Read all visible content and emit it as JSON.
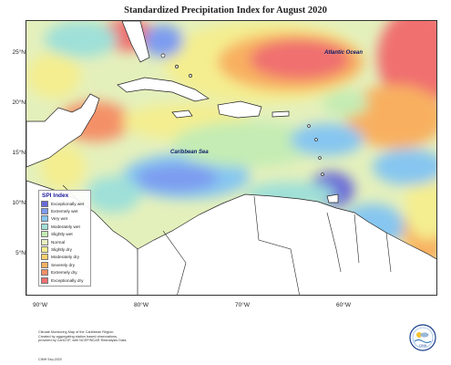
{
  "title": "Standardized Precipitation Index for August 2020",
  "lat_labels": [
    "25°N",
    "20°N",
    "15°N",
    "10°N",
    "5°N"
  ],
  "lon_labels": [
    "90°W",
    "80°W",
    "70°W",
    "60°W"
  ],
  "sea_labels": {
    "atlantic": "Atlantic Ocean",
    "caribbean": "Caribbean Sea"
  },
  "legend": {
    "title": "SPI Index",
    "items": [
      {
        "label": "Exceptionally wet",
        "color": "#6a6ad8"
      },
      {
        "label": "Extremely wet",
        "color": "#7d9cf0"
      },
      {
        "label": "Very wet",
        "color": "#86c6f0"
      },
      {
        "label": "Moderately wet",
        "color": "#9fe0d8"
      },
      {
        "label": "Slightly wet",
        "color": "#c4ecb4"
      },
      {
        "label": "Normal",
        "color": "#e8f0c0"
      },
      {
        "label": "Slightly dry",
        "color": "#f4ee90"
      },
      {
        "label": "Moderately dry",
        "color": "#f8d070"
      },
      {
        "label": "Severely dry",
        "color": "#f8b060"
      },
      {
        "label": "Extremely dry",
        "color": "#f49068"
      },
      {
        "label": "Exceptionally dry",
        "color": "#f07070"
      }
    ]
  },
  "footer": {
    "line1": "Climate Monitoring Map of the Caribbean Region.",
    "line2": "Created by aggregating station based observations,",
    "line3": "provided by CariCOF, with NCEP/NCAR Reanalysis Data.",
    "credit": "CIMH Sep-2020"
  },
  "logo": {
    "text": "CIMH"
  }
}
